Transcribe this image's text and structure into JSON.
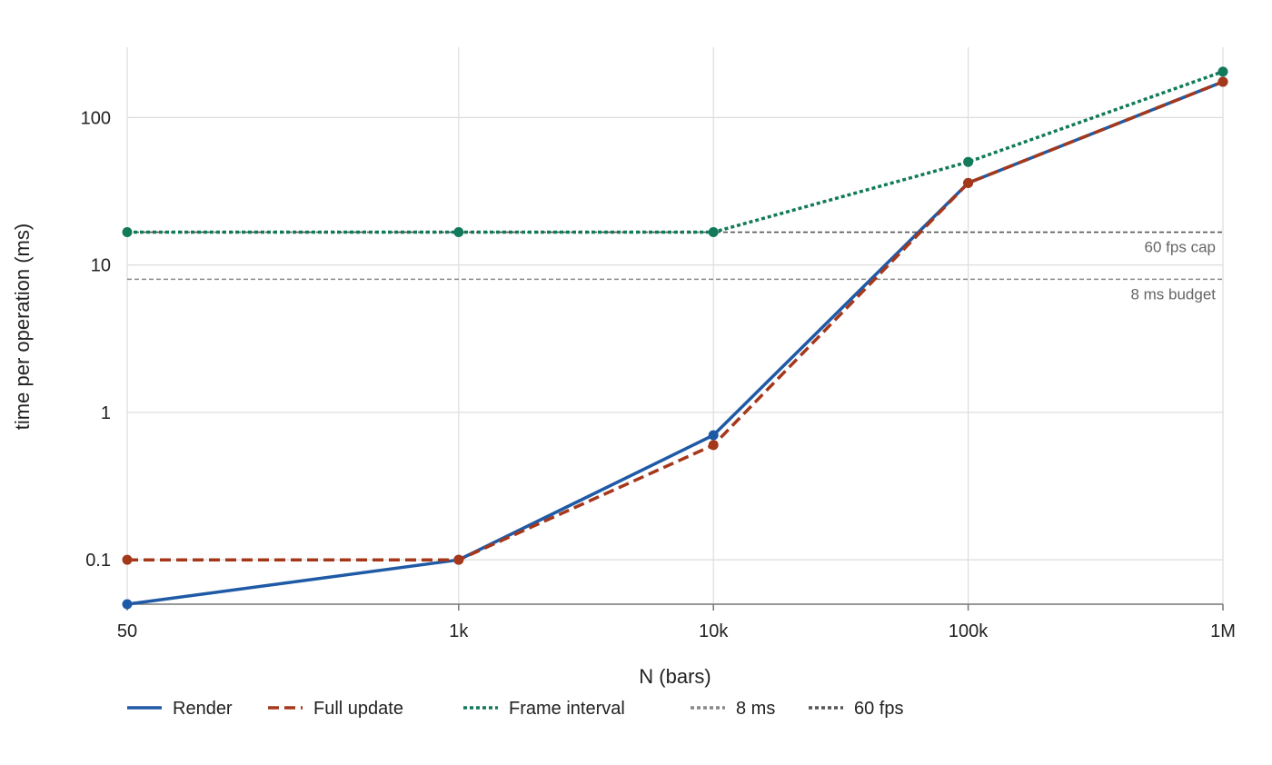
{
  "chart_data": {
    "type": "line",
    "xlabel": "N (bars)",
    "ylabel": "time per operation (ms)",
    "x_scale": "log",
    "y_scale": "log",
    "x": [
      50,
      1000,
      10000,
      100000,
      1000000
    ],
    "x_tick_labels": [
      "50",
      "1k",
      "10k",
      "100k",
      "1M"
    ],
    "y_ticks": [
      0.1,
      1,
      10,
      100
    ],
    "y_tick_labels": [
      "0.1",
      "1",
      "10",
      "100"
    ],
    "xlim": [
      50,
      1000000
    ],
    "ylim": [
      0.05,
      300
    ],
    "grid": true,
    "legend_position": "bottom-left",
    "series": [
      {
        "name": "Render",
        "values": [
          0.05,
          0.1,
          0.7,
          36,
          175
        ],
        "color": "#1f5aa6",
        "style": "solid"
      },
      {
        "name": "Full update",
        "values": [
          0.1,
          0.1,
          0.6,
          36,
          175
        ],
        "color": "#a5381b",
        "style": "dashed"
      },
      {
        "name": "Frame interval",
        "values": [
          16.7,
          16.7,
          16.7,
          50,
          205
        ],
        "color": "#127a5a",
        "style": "dotted"
      }
    ],
    "reference_lines": [
      {
        "name": "8 ms",
        "value": 8,
        "label": "8 ms budget",
        "color": "#888888",
        "style": "dotted"
      },
      {
        "name": "60 fps",
        "value": 16.7,
        "label": "60 fps cap",
        "color": "#555555",
        "style": "dotted"
      }
    ]
  }
}
